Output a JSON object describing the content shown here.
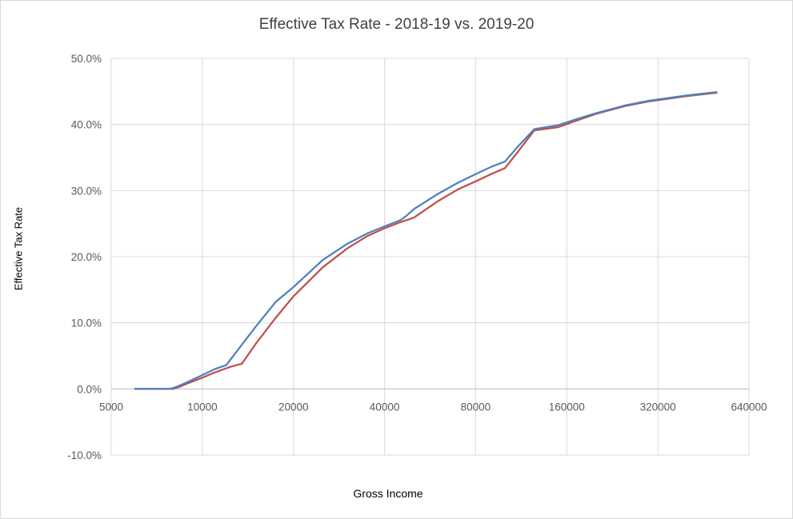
{
  "chart_data": {
    "type": "line",
    "title": "Effective Tax Rate - 2018-19 vs. 2019-20",
    "xlabel": "Gross Income",
    "ylabel": "Effective Tax Rate",
    "x_scale": "log2",
    "xlim": [
      5000,
      640000
    ],
    "ylim": [
      -10.0,
      50.0
    ],
    "x_ticks": [
      5000,
      10000,
      20000,
      40000,
      80000,
      160000,
      320000,
      640000
    ],
    "x_tick_labels": [
      "5000",
      "10000",
      "20000",
      "40000",
      "80000",
      "160000",
      "320000",
      "640000"
    ],
    "y_ticks": [
      -10,
      0,
      10,
      20,
      30,
      40,
      50
    ],
    "y_tick_labels": [
      "-10.0%",
      "0.0%",
      "10.0%",
      "20.0%",
      "30.0%",
      "40.0%",
      "50.0%"
    ],
    "grid": true,
    "legend": "none",
    "series": [
      {
        "color": "#c0504d",
        "x": [
          6000,
          8000,
          8500,
          9000,
          10000,
          11000,
          12500,
          13500,
          15000,
          17500,
          20000,
          25000,
          30000,
          35000,
          40000,
          45000,
          50000,
          60000,
          70000,
          80000,
          90000,
          100000,
          110000,
          125000,
          150000,
          175000,
          200000,
          250000,
          300000,
          400000,
          500000
        ],
        "y": [
          0.0,
          0.0,
          0.4,
          0.9,
          1.7,
          2.5,
          3.4,
          3.8,
          6.8,
          10.8,
          14.0,
          18.4,
          21.2,
          23.1,
          24.3,
          25.2,
          25.9,
          28.4,
          30.2,
          31.4,
          32.5,
          33.4,
          35.8,
          39.1,
          39.6,
          40.7,
          41.6,
          42.8,
          43.5,
          44.3,
          44.8
        ]
      },
      {
        "color": "#4f81bd",
        "x": [
          6000,
          7800,
          8200,
          9000,
          10000,
          11000,
          12000,
          13000,
          15000,
          17500,
          20000,
          25000,
          30000,
          35000,
          40000,
          45000,
          47000,
          50000,
          60000,
          70000,
          80000,
          90000,
          100000,
          110000,
          125000,
          150000,
          175000,
          200000,
          250000,
          300000,
          400000,
          500000
        ],
        "y": [
          0.0,
          0.0,
          0.3,
          1.1,
          2.1,
          3.0,
          3.6,
          5.7,
          9.4,
          13.2,
          15.4,
          19.5,
          21.9,
          23.5,
          24.6,
          25.5,
          26.1,
          27.2,
          29.5,
          31.2,
          32.5,
          33.6,
          34.4,
          36.6,
          39.3,
          39.9,
          40.9,
          41.7,
          42.9,
          43.6,
          44.4,
          44.9
        ]
      }
    ]
  }
}
